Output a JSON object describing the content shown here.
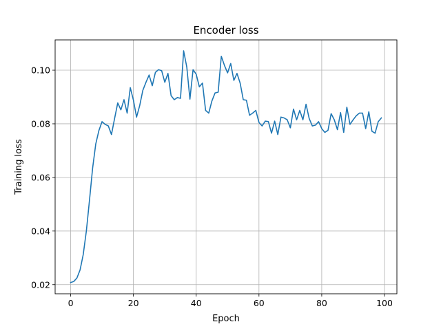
{
  "chart_data": {
    "type": "line",
    "title": "Encoder loss",
    "xlabel": "Epoch",
    "ylabel": "Training loss",
    "xlim": [
      -4.95,
      103.95
    ],
    "ylim": [
      0.0166,
      0.1113
    ],
    "xticks": [
      0,
      20,
      40,
      60,
      80,
      100
    ],
    "xtick_labels": [
      "0",
      "20",
      "40",
      "60",
      "80",
      "100"
    ],
    "yticks": [
      0.02,
      0.04,
      0.06,
      0.08,
      0.1
    ],
    "ytick_labels": [
      "0.02",
      "0.04",
      "0.06",
      "0.08",
      "0.10"
    ],
    "grid": true,
    "legend": "none",
    "series": [
      {
        "color": "#1f77b4",
        "x": [
          0,
          1,
          2,
          3,
          4,
          5,
          6,
          7,
          8,
          9,
          10,
          11,
          12,
          13,
          14,
          15,
          16,
          17,
          18,
          19,
          20,
          21,
          22,
          23,
          24,
          25,
          26,
          27,
          28,
          29,
          30,
          31,
          32,
          33,
          34,
          35,
          36,
          37,
          38,
          39,
          40,
          41,
          42,
          43,
          44,
          45,
          46,
          47,
          48,
          49,
          50,
          51,
          52,
          53,
          54,
          55,
          56,
          57,
          58,
          59,
          60,
          61,
          62,
          63,
          64,
          65,
          66,
          67,
          68,
          69,
          70,
          71,
          72,
          73,
          74,
          75,
          76,
          77,
          78,
          79,
          80,
          81,
          82,
          83,
          84,
          85,
          86,
          87,
          88,
          89,
          90,
          91,
          92,
          93,
          94,
          95,
          96,
          97,
          98,
          99
        ],
        "values": [
          0.0208,
          0.0212,
          0.0225,
          0.0255,
          0.0312,
          0.04,
          0.0515,
          0.0635,
          0.0725,
          0.0775,
          0.0808,
          0.0798,
          0.0792,
          0.076,
          0.082,
          0.0878,
          0.0852,
          0.089,
          0.084,
          0.0935,
          0.0888,
          0.0825,
          0.0868,
          0.0925,
          0.0955,
          0.0982,
          0.0942,
          0.0992,
          0.1002,
          0.0998,
          0.0955,
          0.0988,
          0.0905,
          0.089,
          0.0898,
          0.0895,
          0.1072,
          0.1012,
          0.0892,
          0.1002,
          0.0985,
          0.0938,
          0.0952,
          0.085,
          0.084,
          0.0885,
          0.0915,
          0.0918,
          0.1052,
          0.1018,
          0.099,
          0.1025,
          0.0962,
          0.0988,
          0.0952,
          0.089,
          0.0888,
          0.0832,
          0.084,
          0.085,
          0.0805,
          0.0792,
          0.081,
          0.0808,
          0.0765,
          0.081,
          0.076,
          0.0825,
          0.0822,
          0.0815,
          0.0785,
          0.0855,
          0.0815,
          0.085,
          0.0815,
          0.0873,
          0.082,
          0.0792,
          0.0795,
          0.0808,
          0.0782,
          0.0768,
          0.0776,
          0.0838,
          0.0815,
          0.0778,
          0.0842,
          0.0768,
          0.0862,
          0.0798,
          0.0815,
          0.083,
          0.084,
          0.084,
          0.0782,
          0.0845,
          0.0772,
          0.0765,
          0.0808,
          0.0822
        ]
      }
    ]
  }
}
